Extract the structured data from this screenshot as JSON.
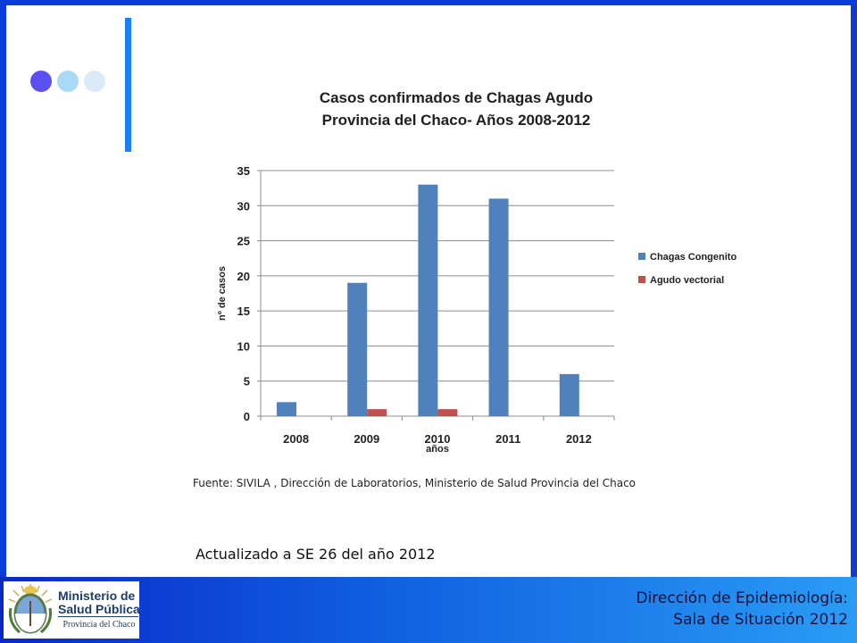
{
  "chart_data": {
    "type": "bar",
    "title": [
      "Casos confirmados de Chagas Agudo",
      "Provincia del Chaco- Años 2008-2012"
    ],
    "categories": [
      "2008",
      "2009",
      "2010",
      "2011",
      "2012"
    ],
    "series": [
      {
        "name": "Chagas  Congenito",
        "color": "#4f81bd",
        "values": [
          2,
          19,
          33,
          31,
          6
        ]
      },
      {
        "name": "Agudo vectorial",
        "color": "#c0504d",
        "values": [
          0,
          1,
          1,
          0,
          0
        ]
      }
    ],
    "xlabel": "años",
    "ylabel": "nº de casos",
    "ylim": [
      0,
      35
    ],
    "yticks": [
      "0",
      "5",
      "10",
      "15",
      "20",
      "25",
      "30",
      "35"
    ],
    "grid": true,
    "legend_position": "right"
  },
  "notes": {
    "source": "Fuente: SIVILA , Dirección de Laboratorios, Ministerio de Salud Provincia del Chaco",
    "updated": "Actualizado a SE 26 del año 2012"
  },
  "footer": {
    "logo_title": "Ministerio de Salud Pública",
    "logo_subtitle": "Provincia del Chaco",
    "line1": "Dirección de Epidemiología:",
    "line2": "Sala de Situación 2012"
  },
  "colors": {
    "frame": "#0a3dd8",
    "accent_bar": "#1a7ff0",
    "dot1": "#5a4ff0",
    "dot2": "#aad9f7",
    "dot3": "#dbeaf8"
  }
}
